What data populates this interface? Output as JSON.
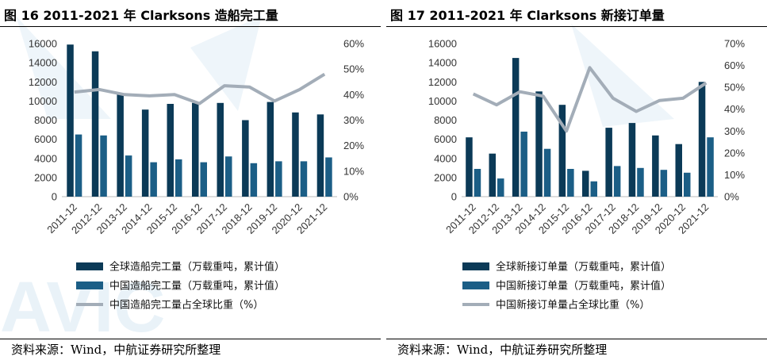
{
  "charts": [
    {
      "figure_title": "图 16 2011-2021 年 Clarksons 造船完工量",
      "source": "资料来源：Wind，中航证券研究所整理",
      "chart_data": {
        "type": "bar",
        "categories": [
          "2011-12",
          "2012-12",
          "2013-12",
          "2014-12",
          "2015-12",
          "2016-12",
          "2017-12",
          "2018-12",
          "2019-12",
          "2020-12",
          "2021-12"
        ],
        "series": [
          {
            "name": "全球造船完工量（万载重吨，累计值）",
            "type": "bar",
            "axis": "left",
            "color": "#0b3a57",
            "values": [
              15900,
              15200,
              10800,
              9100,
              9700,
              9800,
              9800,
              8000,
              9900,
              8800,
              8600
            ]
          },
          {
            "name": "中国造船完工量（万载重吨，累计值）",
            "type": "bar",
            "axis": "left",
            "color": "#1b5e86",
            "values": [
              6500,
              6400,
              4300,
              3600,
              3900,
              3600,
              4200,
              3500,
              3700,
              3700,
              4100
            ]
          },
          {
            "name": "中国造船完工量占全球比重（%）",
            "type": "line",
            "axis": "right",
            "color": "#a3adb8",
            "values": [
              41,
              42,
              40,
              39.5,
              40,
              36.5,
              43.5,
              43,
              37.5,
              42,
              48
            ]
          }
        ],
        "yleft": {
          "min": 0,
          "max": 16000,
          "step": 2000,
          "ticks": [
            "0",
            "2000",
            "4000",
            "6000",
            "8000",
            "10000",
            "12000",
            "14000",
            "16000"
          ]
        },
        "yright": {
          "min": 0,
          "max": 60,
          "step": 10,
          "ticks": [
            "0%",
            "10%",
            "20%",
            "30%",
            "40%",
            "50%",
            "60%"
          ]
        },
        "legend_position": "bottom"
      }
    },
    {
      "figure_title": "图 17 2011-2021 年 Clarksons 新接订单量",
      "source": "资料来源：Wind，中航证券研究所整理",
      "chart_data": {
        "type": "bar",
        "categories": [
          "2011-12",
          "2012-12",
          "2013-12",
          "2014-12",
          "2015-12",
          "2016-12",
          "2017-12",
          "2018-12",
          "2019-12",
          "2020-12",
          "2021-12"
        ],
        "series": [
          {
            "name": "全球新接订单量（万载重吨，累计值）",
            "type": "bar",
            "axis": "left",
            "color": "#0b3a57",
            "values": [
              6200,
              4500,
              14500,
              11000,
              9600,
              2700,
              7200,
              7700,
              6400,
              5500,
              12000
            ]
          },
          {
            "name": "中国新接订单量（万载重吨，累计值）",
            "type": "bar",
            "axis": "left",
            "color": "#1b5e86",
            "values": [
              2900,
              1900,
              6800,
              5000,
              2900,
              1600,
              3200,
              3000,
              2800,
              2500,
              6200
            ]
          },
          {
            "name": "中国新接订单量占全球比重（%）",
            "type": "line",
            "axis": "right",
            "color": "#a3adb8",
            "values": [
              47,
              42,
              48,
              46,
              30,
              59,
              45,
              39,
              44,
              45,
              52
            ]
          }
        ],
        "yleft": {
          "min": 0,
          "max": 16000,
          "step": 2000,
          "ticks": [
            "0",
            "2000",
            "4000",
            "6000",
            "8000",
            "10000",
            "12000",
            "14000",
            "16000"
          ]
        },
        "yright": {
          "min": 0,
          "max": 70,
          "step": 10,
          "ticks": [
            "0%",
            "10%",
            "20%",
            "30%",
            "40%",
            "50%",
            "60%",
            "70%"
          ]
        },
        "legend_position": "bottom"
      }
    }
  ],
  "watermark": {
    "color": "#b9d6ea",
    "text": "AVIC"
  }
}
